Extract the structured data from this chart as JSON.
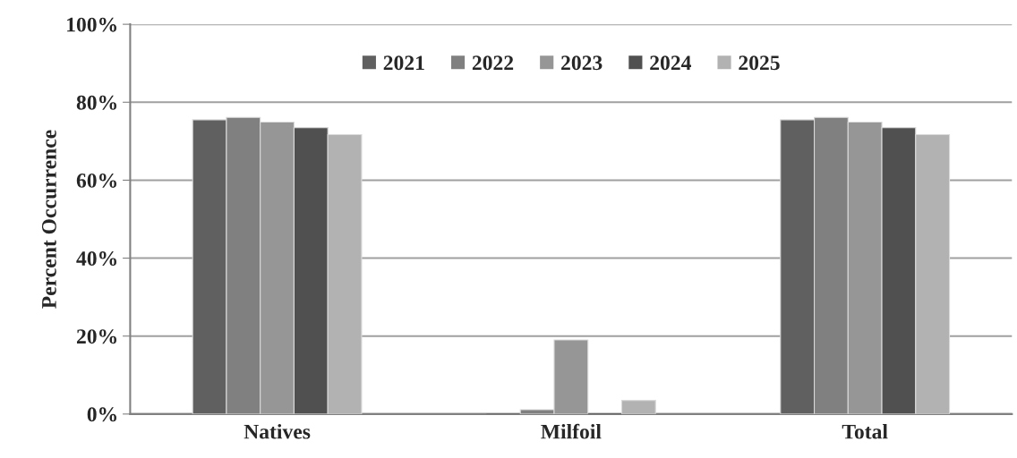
{
  "chart_data": {
    "type": "bar",
    "ylabel": "Percent Occurrence",
    "categories": [
      "Natives",
      "Milfoil",
      "Total"
    ],
    "series": [
      {
        "name": "2021",
        "color": "#606060",
        "values": [
          75.5,
          0,
          75.5
        ]
      },
      {
        "name": "2022",
        "color": "#808080",
        "values": [
          76.1,
          1.1,
          76.1
        ]
      },
      {
        "name": "2023",
        "color": "#969696",
        "values": [
          74.9,
          19.0,
          74.9
        ]
      },
      {
        "name": "2024",
        "color": "#505050",
        "values": [
          73.5,
          0,
          73.5
        ]
      },
      {
        "name": "2025",
        "color": "#b2b2b2",
        "values": [
          71.7,
          3.5,
          71.7
        ]
      }
    ],
    "ylim": [
      0,
      100
    ],
    "yticks": [
      {
        "value": 0,
        "label": "0%"
      },
      {
        "value": 20,
        "label": "20%"
      },
      {
        "value": 40,
        "label": "40%"
      },
      {
        "value": 60,
        "label": "60%"
      },
      {
        "value": 80,
        "label": "80%"
      },
      {
        "value": 100,
        "label": "100%"
      }
    ],
    "grid": "y",
    "legend": "top"
  }
}
